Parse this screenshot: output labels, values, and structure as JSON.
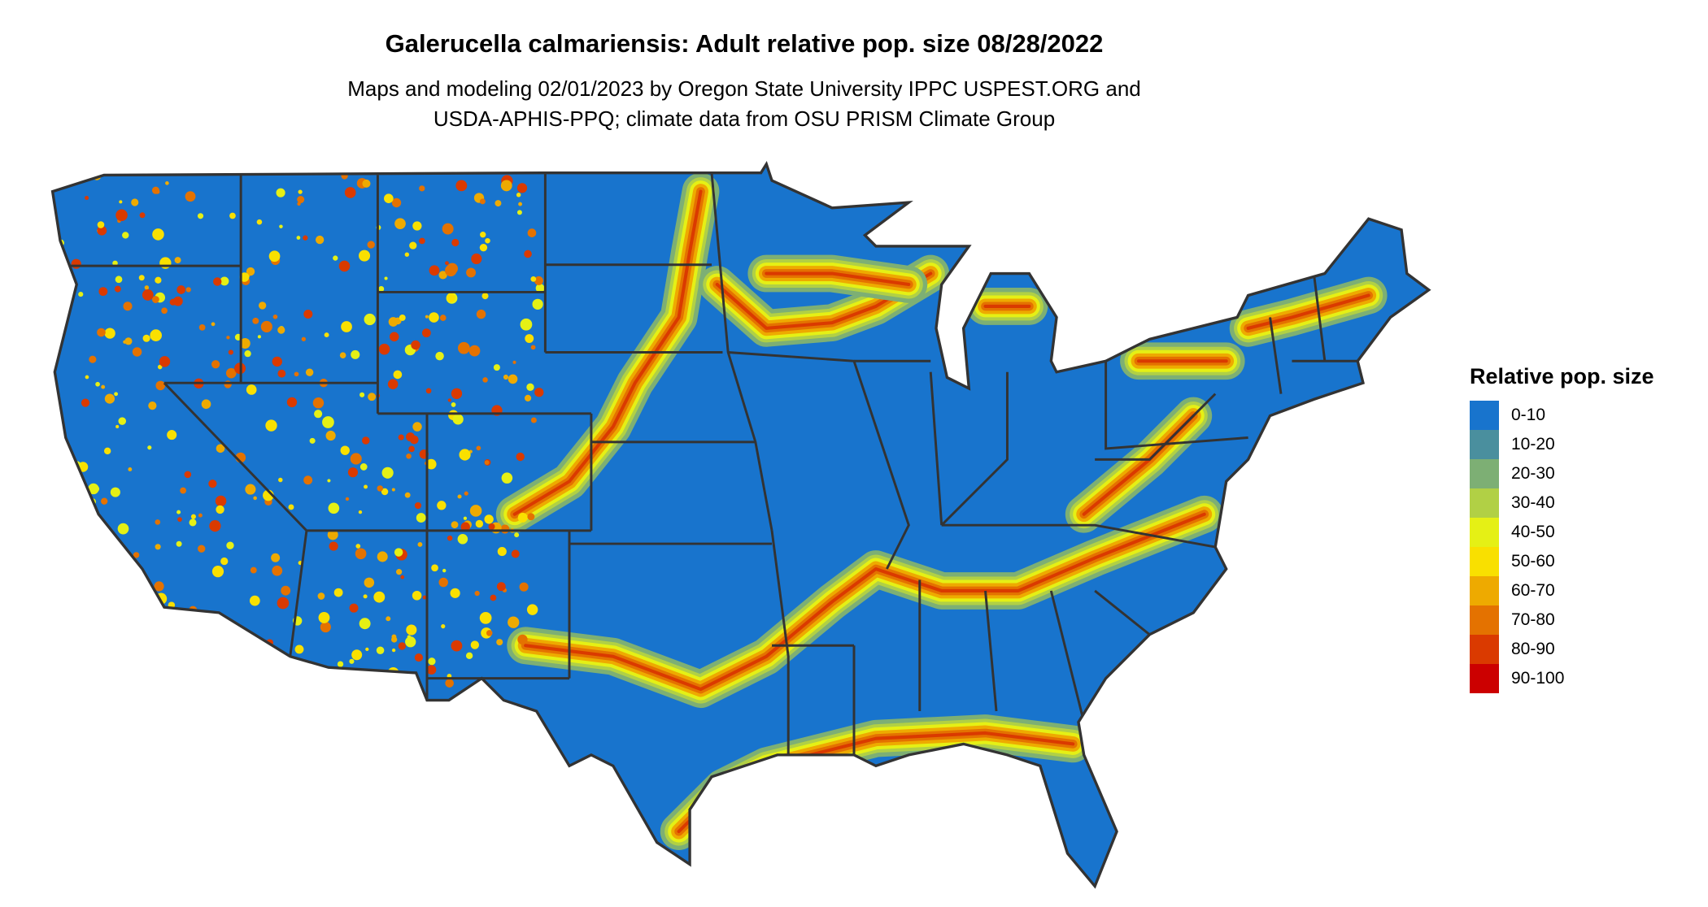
{
  "title": "Galerucella calmariensis: Adult relative pop. size 08/28/2022",
  "subtitle_lines": [
    "Maps and modeling 02/01/2023 by Oregon State University IPPC USPEST.ORG and",
    "USDA-APHIS-PPQ; climate data from OSU PRISM Climate Group"
  ],
  "map": {
    "region": "Contiguous United States",
    "background_class_color": "#1874CD",
    "border_color": "#333333"
  },
  "legend": {
    "title": "Relative pop. size",
    "items": [
      {
        "label": "0-10",
        "color": "#1874CD"
      },
      {
        "label": "10-20",
        "color": "#4A8F9E"
      },
      {
        "label": "20-30",
        "color": "#7DAF74"
      },
      {
        "label": "30-40",
        "color": "#B1D045"
      },
      {
        "label": "40-50",
        "color": "#E5F015"
      },
      {
        "label": "50-60",
        "color": "#F9E000"
      },
      {
        "label": "60-70",
        "color": "#EEAA00"
      },
      {
        "label": "70-80",
        "color": "#E47200"
      },
      {
        "label": "80-90",
        "color": "#DA3A00"
      },
      {
        "label": "90-100",
        "color": "#CC0000"
      }
    ]
  }
}
